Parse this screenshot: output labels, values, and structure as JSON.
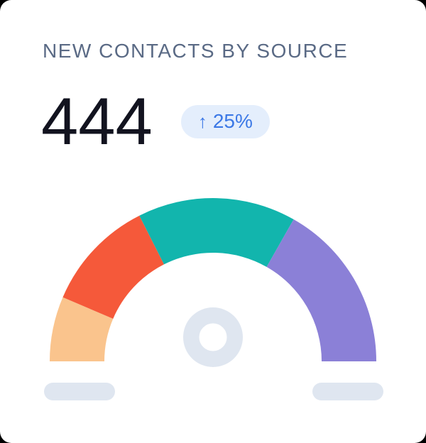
{
  "card": {
    "title": "NEW CONTACTS BY SOURCE",
    "value": "444",
    "trend": {
      "arrow": "↑",
      "value": "25%",
      "direction": "up"
    },
    "colors": {
      "card_bg": "#FFFFFF",
      "page_bg": "#000000",
      "title_text": "#5A6A85",
      "value_text": "#12131F",
      "badge_bg": "#E4EEFC",
      "badge_text": "#3B78E6"
    }
  },
  "chart_data": {
    "type": "gauge",
    "title": "NEW CONTACTS BY SOURCE",
    "total": 444,
    "trend_percent": 25,
    "start_angle_deg": 180,
    "end_angle_deg": 0,
    "legend": "none",
    "segments": [
      {
        "id": "peach",
        "color": "#FAC48D",
        "sweep_deg": 23.1,
        "percent_est": 12.8,
        "value_est": 57
      },
      {
        "id": "orange",
        "color": "#F5593A",
        "sweep_deg": 40.1,
        "percent_est": 22.3,
        "value_est": 99
      },
      {
        "id": "teal",
        "color": "#12B5AD",
        "sweep_deg": 56.4,
        "percent_est": 31.3,
        "value_est": 139
      },
      {
        "id": "purple",
        "color": "#8B80D7",
        "sweep_deg": 60.4,
        "percent_est": 33.6,
        "value_est": 149
      }
    ],
    "hub_color": "#DFE6F0",
    "leg_color": "#DFE6F0"
  }
}
